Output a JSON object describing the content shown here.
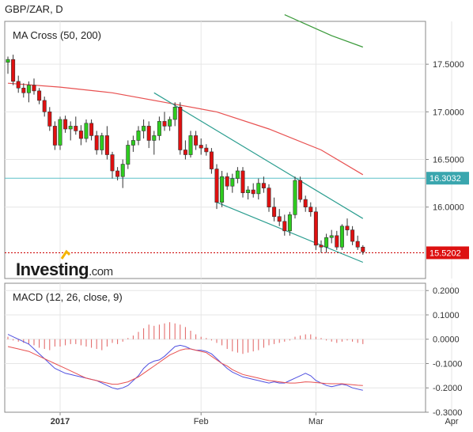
{
  "header": {
    "title": "GBP/ZAR, D"
  },
  "logo": {
    "brand": "Investing",
    "suffix": ".com"
  },
  "colors": {
    "up": "#2ecc1f",
    "down": "#e01010",
    "ma50": "#e85050",
    "ma200": "#3a9a3a",
    "channel": "#2a9d8f",
    "macd": "#5050e0",
    "signal": "#e85050",
    "hist": "#e06060",
    "hline": "#5bc0c8",
    "price_dotted": "#cc0000",
    "label_teal": "#3aa6ae",
    "label_red": "#dd1111",
    "grid": "#e6e6e6",
    "axis": "#888888"
  },
  "chart_data": [
    {
      "type": "candlestick",
      "title": "MA Cross (50, 200)",
      "y_ticks": [
        "17.5000",
        "17.0000",
        "16.5000",
        "16.0000"
      ],
      "y_tick_values": [
        17.5,
        17.0,
        16.5,
        16.0
      ],
      "ylim": [
        15.25,
        17.95
      ],
      "x_ticks": [
        "2017",
        "Feb",
        "Mar",
        "Apr"
      ],
      "x_tick_index": [
        10,
        37,
        59,
        85
      ],
      "price_labels": [
        {
          "text": "16.3032",
          "value": 16.3032,
          "style": "teal"
        },
        {
          "text": "15.5202",
          "value": 15.5202,
          "style": "red"
        }
      ],
      "candles": [
        [
          17.52,
          17.58,
          17.4,
          17.55
        ],
        [
          17.55,
          17.6,
          17.28,
          17.32
        ],
        [
          17.32,
          17.38,
          17.2,
          17.25
        ],
        [
          17.25,
          17.3,
          17.15,
          17.2
        ],
        [
          17.2,
          17.32,
          17.1,
          17.28
        ],
        [
          17.28,
          17.35,
          17.18,
          17.22
        ],
        [
          17.22,
          17.25,
          17.08,
          17.12
        ],
        [
          17.12,
          17.16,
          16.95,
          17.0
        ],
        [
          17.0,
          17.05,
          16.8,
          16.85
        ],
        [
          16.85,
          16.9,
          16.6,
          16.65
        ],
        [
          16.65,
          16.95,
          16.6,
          16.92
        ],
        [
          16.92,
          16.96,
          16.78,
          16.82
        ],
        [
          16.82,
          16.9,
          16.7,
          16.85
        ],
        [
          16.85,
          16.95,
          16.76,
          16.8
        ],
        [
          16.8,
          16.86,
          16.65,
          16.72
        ],
        [
          16.72,
          16.92,
          16.68,
          16.88
        ],
        [
          16.88,
          16.92,
          16.7,
          16.75
        ],
        [
          16.75,
          16.8,
          16.55,
          16.6
        ],
        [
          16.6,
          16.78,
          16.55,
          16.75
        ],
        [
          16.75,
          16.85,
          16.5,
          16.55
        ],
        [
          16.55,
          16.58,
          16.3,
          16.38
        ],
        [
          16.38,
          16.42,
          16.28,
          16.32
        ],
        [
          16.32,
          16.5,
          16.2,
          16.45
        ],
        [
          16.45,
          16.7,
          16.4,
          16.65
        ],
        [
          16.65,
          16.75,
          16.58,
          16.7
        ],
        [
          16.7,
          16.85,
          16.65,
          16.8
        ],
        [
          16.8,
          16.92,
          16.72,
          16.85
        ],
        [
          16.85,
          16.9,
          16.62,
          16.7
        ],
        [
          16.7,
          16.8,
          16.55,
          16.75
        ],
        [
          16.75,
          16.95,
          16.7,
          16.9
        ],
        [
          16.9,
          17.0,
          16.8,
          16.85
        ],
        [
          16.85,
          16.95,
          16.8,
          16.92
        ],
        [
          16.92,
          17.1,
          16.85,
          17.05
        ],
        [
          17.05,
          17.1,
          16.55,
          16.6
        ],
        [
          16.6,
          16.7,
          16.5,
          16.55
        ],
        [
          16.55,
          16.8,
          16.52,
          16.75
        ],
        [
          16.75,
          16.8,
          16.6,
          16.65
        ],
        [
          16.65,
          16.72,
          16.55,
          16.62
        ],
        [
          16.62,
          16.66,
          16.54,
          16.58
        ],
        [
          16.58,
          16.62,
          16.35,
          16.4
        ],
        [
          16.4,
          16.45,
          15.98,
          16.05
        ],
        [
          16.05,
          16.38,
          16.0,
          16.32
        ],
        [
          16.32,
          16.36,
          16.18,
          16.22
        ],
        [
          16.22,
          16.35,
          16.15,
          16.3
        ],
        [
          16.3,
          16.42,
          16.25,
          16.38
        ],
        [
          16.38,
          16.42,
          16.1,
          16.15
        ],
        [
          16.15,
          16.22,
          16.08,
          16.18
        ],
        [
          16.18,
          16.25,
          16.1,
          16.14
        ],
        [
          16.14,
          16.3,
          16.08,
          16.25
        ],
        [
          16.25,
          16.32,
          16.15,
          16.2
        ],
        [
          16.2,
          16.24,
          15.95,
          16.0
        ],
        [
          16.0,
          16.1,
          15.85,
          15.9
        ],
        [
          15.9,
          15.98,
          15.8,
          15.85
        ],
        [
          15.85,
          15.92,
          15.7,
          15.75
        ],
        [
          15.75,
          15.95,
          15.7,
          15.92
        ],
        [
          15.92,
          16.32,
          15.88,
          16.28
        ],
        [
          16.28,
          16.32,
          16.05,
          16.08
        ],
        [
          16.08,
          16.12,
          15.95,
          16.0
        ],
        [
          16.0,
          16.05,
          15.9,
          15.95
        ],
        [
          15.95,
          16.0,
          15.55,
          15.6
        ],
        [
          15.6,
          15.65,
          15.52,
          15.58
        ],
        [
          15.58,
          15.72,
          15.52,
          15.68
        ],
        [
          15.68,
          15.76,
          15.62,
          15.7
        ],
        [
          15.7,
          15.75,
          15.55,
          15.58
        ],
        [
          15.58,
          15.82,
          15.55,
          15.8
        ],
        [
          15.8,
          15.88,
          15.7,
          15.76
        ],
        [
          15.76,
          15.8,
          15.6,
          15.64
        ],
        [
          15.64,
          15.7,
          15.55,
          15.58
        ],
        [
          15.58,
          15.6,
          15.5,
          15.53
        ]
      ],
      "ma50": [
        [
          0,
          17.3
        ],
        [
          10,
          17.26
        ],
        [
          20,
          17.2
        ],
        [
          30,
          17.1
        ],
        [
          40,
          17.0
        ],
        [
          50,
          16.82
        ],
        [
          60,
          16.6
        ],
        [
          68,
          16.34
        ]
      ],
      "ma200": [
        [
          53,
          18.02
        ],
        [
          62,
          17.8
        ],
        [
          68,
          17.68
        ]
      ],
      "channel_upper": [
        [
          28,
          17.2
        ],
        [
          68,
          15.88
        ]
      ],
      "channel_lower": [
        [
          40,
          16.05
        ],
        [
          68,
          15.42
        ]
      ],
      "hline": 16.3032,
      "last_price": 15.5202
    },
    {
      "type": "line",
      "title": "MACD (12, 26, close, 9)",
      "y_ticks": [
        "0.2000",
        "0.1000",
        "0.0000",
        "-0.1000",
        "-0.2000",
        "-0.3000"
      ],
      "y_tick_values": [
        0.2,
        0.1,
        0.0,
        -0.1,
        -0.2,
        -0.3
      ],
      "ylim": [
        -0.3,
        0.23
      ],
      "series": [
        {
          "key": "macd",
          "values": [
            0.02,
            0.01,
            0.0,
            -0.01,
            -0.02,
            -0.04,
            -0.06,
            -0.08,
            -0.1,
            -0.12,
            -0.13,
            -0.14,
            -0.145,
            -0.15,
            -0.155,
            -0.16,
            -0.165,
            -0.17,
            -0.18,
            -0.19,
            -0.2,
            -0.205,
            -0.2,
            -0.19,
            -0.17,
            -0.15,
            -0.12,
            -0.1,
            -0.09,
            -0.085,
            -0.07,
            -0.05,
            -0.03,
            -0.025,
            -0.03,
            -0.04,
            -0.045,
            -0.045,
            -0.05,
            -0.06,
            -0.08,
            -0.1,
            -0.12,
            -0.135,
            -0.145,
            -0.155,
            -0.16,
            -0.165,
            -0.17,
            -0.175,
            -0.18,
            -0.175,
            -0.18,
            -0.18,
            -0.17,
            -0.16,
            -0.15,
            -0.14,
            -0.15,
            -0.17,
            -0.18,
            -0.19,
            -0.195,
            -0.19,
            -0.185,
            -0.19,
            -0.2,
            -0.205,
            -0.21
          ]
        },
        {
          "key": "signal",
          "values": [
            -0.03,
            -0.035,
            -0.04,
            -0.045,
            -0.05,
            -0.06,
            -0.07,
            -0.08,
            -0.09,
            -0.1,
            -0.11,
            -0.12,
            -0.13,
            -0.14,
            -0.15,
            -0.16,
            -0.165,
            -0.17,
            -0.175,
            -0.18,
            -0.185,
            -0.185,
            -0.18,
            -0.175,
            -0.165,
            -0.155,
            -0.14,
            -0.125,
            -0.11,
            -0.095,
            -0.08,
            -0.065,
            -0.055,
            -0.045,
            -0.04,
            -0.04,
            -0.045,
            -0.05,
            -0.055,
            -0.07,
            -0.085,
            -0.1,
            -0.11,
            -0.125,
            -0.135,
            -0.145,
            -0.15,
            -0.155,
            -0.16,
            -0.165,
            -0.17,
            -0.172,
            -0.175,
            -0.178,
            -0.18,
            -0.18,
            -0.178,
            -0.175,
            -0.176,
            -0.178,
            -0.18,
            -0.182,
            -0.183,
            -0.183,
            -0.183,
            -0.185,
            -0.187,
            -0.189,
            -0.19
          ]
        }
      ],
      "histogram": [
        0.01,
        -0.005,
        -0.01,
        -0.015,
        -0.02,
        -0.025,
        -0.035,
        -0.04,
        -0.045,
        -0.03,
        -0.03,
        -0.025,
        -0.02,
        -0.02,
        -0.025,
        -0.03,
        -0.035,
        -0.04,
        -0.045,
        -0.03,
        -0.015,
        -0.02,
        -0.01,
        0.005,
        0.015,
        0.03,
        0.045,
        0.06,
        0.055,
        0.06,
        0.065,
        0.07,
        0.065,
        0.06,
        0.05,
        0.035,
        0.02,
        0.01,
        0.005,
        -0.005,
        -0.015,
        -0.025,
        -0.04,
        -0.05,
        -0.055,
        -0.06,
        -0.055,
        -0.05,
        -0.045,
        -0.035,
        -0.025,
        -0.02,
        -0.015,
        -0.01,
        -0.005,
        0.01,
        0.015,
        0.02,
        0.02,
        0.01,
        0.005,
        -0.005,
        -0.01,
        -0.015,
        -0.01,
        -0.005,
        -0.01,
        -0.015,
        -0.02
      ]
    }
  ]
}
